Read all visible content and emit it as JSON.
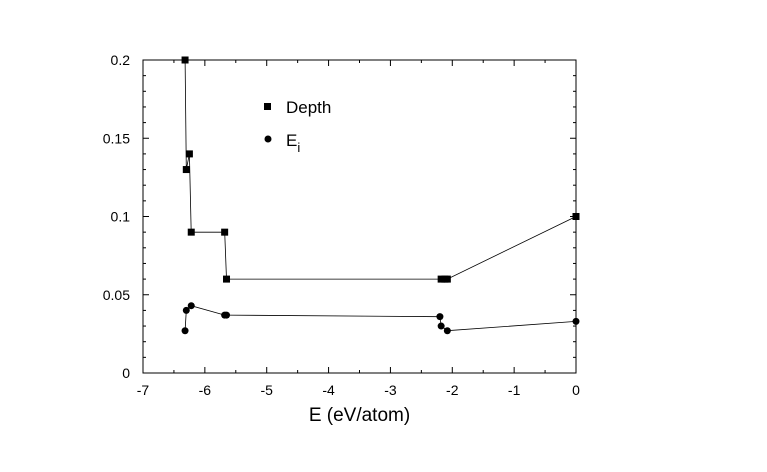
{
  "chart_data": {
    "type": "line",
    "title": "",
    "xlabel": "E (eV/atom)",
    "ylabel": "",
    "xlim": [
      -7,
      0
    ],
    "ylim": [
      0,
      0.2
    ],
    "x_ticks": [
      "-7",
      "-6",
      "-5",
      "-4",
      "-3",
      "-2",
      "-1",
      "0"
    ],
    "y_ticks": [
      "0",
      "0.05",
      "0.1",
      "0.15",
      "0.2"
    ],
    "grid": false,
    "legend_position": "top-center",
    "series": [
      {
        "name": "Depth",
        "marker": "square",
        "x": [
          -6.32,
          -6.3,
          -6.25,
          -6.22,
          -5.68,
          -5.65,
          -2.18,
          -2.12,
          -2.08,
          0
        ],
        "y": [
          0.2,
          0.13,
          0.14,
          0.09,
          0.09,
          0.06,
          0.06,
          0.06,
          0.06,
          0.1
        ]
      },
      {
        "name": "E",
        "name_subscript": "i",
        "marker": "circle",
        "x": [
          -6.32,
          -6.3,
          -6.22,
          -5.68,
          -5.65,
          -2.2,
          -2.18,
          -2.08,
          0
        ],
        "y": [
          0.027,
          0.04,
          0.043,
          0.037,
          0.037,
          0.036,
          0.03,
          0.027,
          0.033
        ]
      }
    ]
  }
}
